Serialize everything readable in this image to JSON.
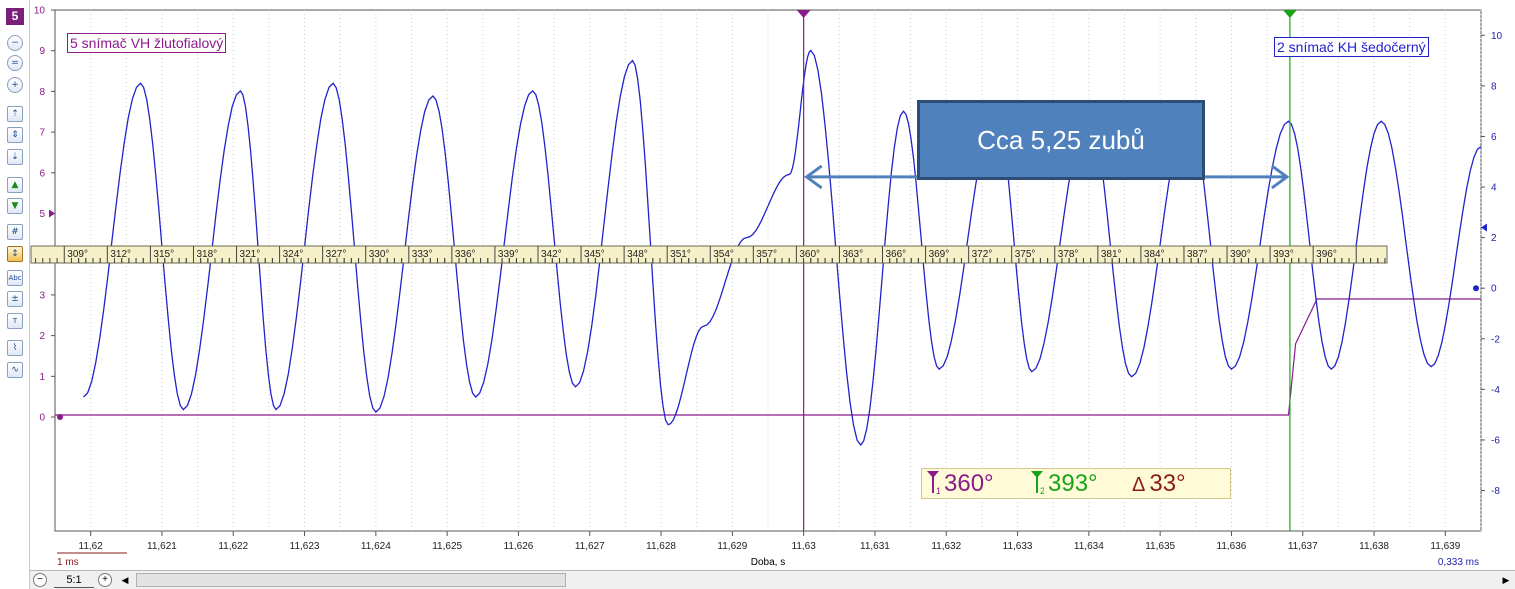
{
  "toolbar": {
    "channel_number": "5",
    "buttons": [
      "zoom-out-icon",
      "zoom-fit-icon",
      "zoom-in-icon",
      "scale-up-icon",
      "scale-fit-icon",
      "scale-down-icon",
      "offset-up-icon",
      "offset-down-icon",
      "grid-icon",
      "ruler-icon",
      "text-label-icon",
      "measure-icon",
      "text-tool-icon",
      "chart-view-icon",
      "waveform-view-icon"
    ],
    "text_label": "Abc"
  },
  "chart_data": {
    "type": "line",
    "xlabel": "Doba, s",
    "xlim": [
      11.6195,
      11.6395
    ],
    "x_ticks": [
      "11,62",
      "11,621",
      "11,622",
      "11,623",
      "11,624",
      "11,625",
      "11,626",
      "11,627",
      "11,628",
      "11,629",
      "11,63",
      "11,631",
      "11,632",
      "11,633",
      "11,634",
      "11,635",
      "11,636",
      "11,637",
      "11,638",
      "11,639"
    ],
    "left_axis": {
      "ylim": [
        -2.8,
        10
      ],
      "ticks": [
        "0",
        "1",
        "2",
        "3",
        "4",
        "5",
        "6",
        "7",
        "8",
        "9",
        "10"
      ]
    },
    "right_axis": {
      "ylim": [
        -9.6,
        11
      ],
      "ticks": [
        "-8",
        "-6",
        "-4",
        "-2",
        "0",
        "2",
        "4",
        "6",
        "8",
        "10"
      ]
    },
    "scale_left": "1 ms",
    "scale_right": "0,333 ms",
    "series": [
      {
        "name": "5 snímač VH žlutofialový",
        "axis": "left",
        "color": "#8b1a8b",
        "x": [
          11.6195,
          11.6368,
          11.6369,
          11.6372,
          11.6395
        ],
        "y": [
          0.05,
          0.05,
          1.8,
          2.9,
          2.9
        ]
      },
      {
        "name": "2 snímač KH šedočerný",
        "axis": "right",
        "color": "#2222cc",
        "peaks": [
          {
            "x": 11.6199,
            "y": -4.3
          },
          {
            "x": 11.6207,
            "y": 8.1
          },
          {
            "x": 11.6213,
            "y": -4.8
          },
          {
            "x": 11.6221,
            "y": 7.8
          },
          {
            "x": 11.6226,
            "y": -4.8
          },
          {
            "x": 11.6234,
            "y": 8.1
          },
          {
            "x": 11.624,
            "y": -4.9
          },
          {
            "x": 11.6248,
            "y": 7.6
          },
          {
            "x": 11.6254,
            "y": -4.3
          },
          {
            "x": 11.6262,
            "y": 7.8
          },
          {
            "x": 11.6268,
            "y": -3.9
          },
          {
            "x": 11.6276,
            "y": 9.0
          },
          {
            "x": 11.6281,
            "y": -5.4
          },
          {
            "x": 11.6286,
            "y": -1.5
          },
          {
            "x": 11.6292,
            "y": 2.0
          },
          {
            "x": 11.6298,
            "y": 4.5
          },
          {
            "x": 11.6301,
            "y": 9.4
          },
          {
            "x": 11.6308,
            "y": -6.2
          },
          {
            "x": 11.6314,
            "y": 7.0
          },
          {
            "x": 11.6319,
            "y": -3.2
          },
          {
            "x": 11.6327,
            "y": 7.0
          },
          {
            "x": 11.6332,
            "y": -3.3
          },
          {
            "x": 11.634,
            "y": 7.0
          },
          {
            "x": 11.6346,
            "y": -3.5
          },
          {
            "x": 11.6354,
            "y": 7.0
          },
          {
            "x": 11.636,
            "y": -3.2
          },
          {
            "x": 11.6368,
            "y": 6.6
          },
          {
            "x": 11.6374,
            "y": -3.2
          },
          {
            "x": 11.6381,
            "y": 6.6
          },
          {
            "x": 11.6388,
            "y": -3.1
          },
          {
            "x": 11.6395,
            "y": 5.6
          }
        ]
      }
    ],
    "ruler_degrees": [
      "309°",
      "312°",
      "315°",
      "318°",
      "321°",
      "324°",
      "327°",
      "330°",
      "333°",
      "336°",
      "339°",
      "342°",
      "345°",
      "348°",
      "351°",
      "354°",
      "357°",
      "360°",
      "363°",
      "366°",
      "369°",
      "372°",
      "375°",
      "378°",
      "381°",
      "384°",
      "387°",
      "390°",
      "393°",
      "396°"
    ],
    "ruler_x_start": 11.61963,
    "ruler_x_step": 0.000604,
    "cursors": [
      {
        "name": "cursor-1",
        "x": 11.63,
        "color": "#8b1a8b"
      },
      {
        "name": "cursor-2",
        "x": 11.63682,
        "color": "#19a319"
      }
    ],
    "annotation_arrow": {
      "x1": 11.63,
      "x2": 11.63682,
      "y": 4.4
    }
  },
  "labels": {
    "channel_left": "5 snímač VH žlutofialový",
    "channel_right": "2 snímač KH šedočerný",
    "annotation": "Cca 5,25 zubů"
  },
  "readout": {
    "cursor1_value": "360°",
    "cursor2_value": "393°",
    "delta_value": "33°",
    "cursor1_index": "1",
    "cursor2_index": "2",
    "delta_symbol": "Δ",
    "colors": {
      "c1": "#8b1a8b",
      "c2": "#19a319",
      "delta": "#8b1a1a"
    }
  },
  "bottom": {
    "zoom_ratio": "5:1",
    "zoom_out": "−",
    "zoom_in": "+",
    "scroll_left": "◀",
    "scroll_right": "▶"
  }
}
